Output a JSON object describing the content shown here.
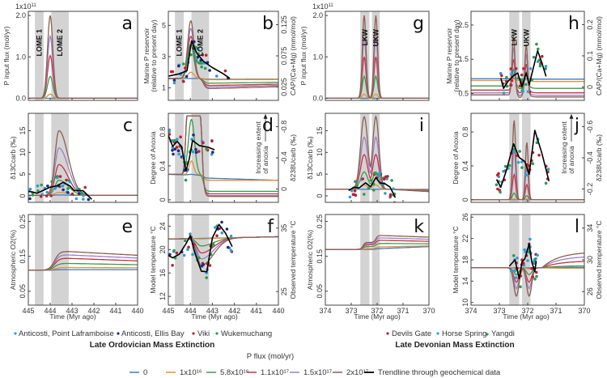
{
  "chart_data": {
    "type": "line",
    "title": "Model P-flux scenarios vs geochemical data for Late Ordovician and Late Devonian mass extinctions",
    "colors": {
      "flux_0": "#3b7bbf",
      "flux_1e16": "#e2913b",
      "flux_5.8e16": "#3a9a4c",
      "flux_1.1e17": "#c6333f",
      "flux_1.5e17": "#9b7fc9",
      "flux_2e17": "#8c5f4e",
      "trend": "#000000",
      "band": "#d3d3d3",
      "site_point_laframboise": "#2a9fd6",
      "site_ellis_bay": "#1d2b82",
      "site_viki": "#c0202f",
      "site_wukemuchang": "#2b9a55",
      "site_devils_gate": "#c0202f",
      "site_horse_spring": "#2a9fd6",
      "site_yangdi": "#2b9a55"
    },
    "scenarios": [
      {
        "label": "0",
        "flux": 0
      },
      {
        "label": "1x10^16",
        "flux": 1e+16
      },
      {
        "label": "5.8x10^16",
        "flux": 5.8e+16
      },
      {
        "label": "1.1x10^17",
        "flux": 1.1e+17
      },
      {
        "label": "1.5x10^17",
        "flux": 1.5e+17
      },
      {
        "label": "2x10^17",
        "flux": 2e+17
      }
    ],
    "groups": [
      {
        "name": "Late Ordovician Mass Extinction",
        "xlim": [
          445,
          440
        ],
        "xticks": [
          445,
          444,
          443,
          442,
          441,
          440
        ],
        "xlabel": "Time (Myr ago)",
        "bands": [
          {
            "label": "LOME 1",
            "from": 444.7,
            "to": 444.3
          },
          {
            "label": "LOME 2",
            "from": 443.95,
            "to": 443.15
          }
        ],
        "sites": [
          "Anticosti, Point Laframboise",
          "Anticosti, Ellis Bay",
          "Viki",
          "Wukemuchang"
        ],
        "panels": {
          "a": {
            "ylabel": "P input flux (mol/yr)",
            "yscale_label": "1x10^11",
            "ylim": [
              -0.05,
              2.1
            ],
            "yticks": [
              "0.0",
              "1.0",
              "2.0"
            ],
            "ytick_values": [
              0,
              1,
              2
            ],
            "peaks_1e11": [
              0,
              0.1,
              0.53,
              1.03,
              1.5,
              2.0
            ],
            "pulses": [
              {
                "center": 444.0,
                "width": 0.12
              }
            ]
          },
          "b": {
            "ylabel": "Marine P reservoir (relative to present day)",
            "ylabel2": "CAP/(Ca+Mg) (mmol/mol)",
            "ylim": [
              0.2,
              5.9
            ],
            "yticks": [
              "1",
              "3",
              "5"
            ],
            "ytick_values": [
              1,
              3,
              5
            ],
            "y2ticks": [
              "0.025",
              "0.075",
              "0.125"
            ],
            "baseline": 1.6,
            "peaks": [
              1.6,
              2.0,
              3.8,
              4.3,
              4.8,
              5.3
            ],
            "post": [
              1.55,
              1.52,
              1.3,
              1.15,
              1.05,
              0.95
            ],
            "trend": [
              [
                445,
                1.75
              ],
              [
                444.5,
                1.9
              ],
              [
                444.15,
                2.1
              ],
              [
                443.95,
                4.0
              ],
              [
                443.7,
                3.2
              ],
              [
                443.4,
                2.7
              ],
              [
                443.0,
                2.3
              ],
              [
                442.5,
                1.9
              ],
              [
                442.2,
                1.6
              ]
            ]
          },
          "c": {
            "ylabel": "δ13Ccarb (‰)",
            "ylim": [
              -1.5,
              19
            ],
            "yticks": [
              "0",
              "5",
              "10",
              "15"
            ],
            "ytick_values": [
              0,
              5,
              10,
              15
            ],
            "peaks": [
              0.2,
              0.8,
              3.6,
              7.2,
              11,
              15
            ],
            "trend": [
              [
                445,
                1.1
              ],
              [
                444.6,
                0.6
              ],
              [
                444.3,
                1.3
              ],
              [
                444.0,
                2.0
              ],
              [
                443.7,
                2.3
              ],
              [
                443.4,
                3.1
              ],
              [
                443.1,
                2.3
              ],
              [
                442.9,
                1.2
              ],
              [
                442.5,
                1.2
              ],
              [
                442.1,
                -0.8
              ]
            ]
          },
          "d": {
            "ylabel": "Degree of Anoxia",
            "ylabel2": "δ238Ucarb (‰)",
            "annotation": "Increasing extent of anoxia",
            "ylim": [
              -0.03,
              1.02
            ],
            "yticks": [
              "0",
              "0.4",
              "0.8"
            ],
            "ytick_values": [
              0,
              0.4,
              0.8
            ],
            "y2ticks": [
              "0",
              "-0.4",
              "-0.8"
            ],
            "baseline": 0.3,
            "peaks": [
              0.3,
              0.46,
              0.95,
              0.99,
              0.99,
              0.99
            ],
            "post": [
              0.27,
              0.23,
              0.1,
              0.07,
              0.05,
              0.04
            ],
            "trend": [
              [
                445,
                0.76
              ],
              [
                444.8,
                0.63
              ],
              [
                444.6,
                0.69
              ],
              [
                444.4,
                0.63
              ],
              [
                444.2,
                0.34
              ],
              [
                444.05,
                0.48
              ],
              [
                443.9,
                0.7
              ],
              [
                443.6,
                0.64
              ],
              [
                443.2,
                0.62
              ],
              [
                442.9,
                0.59
              ]
            ]
          },
          "e": {
            "ylabel": "Atmospheric O2(%)",
            "ylim": [
              0.01,
              0.27
            ],
            "yticks": [
              "0.05",
              "0.15",
              "0.25"
            ],
            "ytick_values": [
              0.05,
              0.15,
              0.25
            ],
            "baseline": 0.11,
            "plateau": [
              0.112,
              0.118,
              0.13,
              0.145,
              0.155,
              0.165
            ],
            "end": [
              0.112,
              0.117,
              0.126,
              0.137,
              0.145,
              0.153
            ]
          },
          "f": {
            "ylabel": "Model temperature °C",
            "ylabel2": "Observed temperature °C",
            "ylim": [
              10.5,
              26
            ],
            "yticks": [
              "12",
              "16",
              "20",
              "24"
            ],
            "ytick_values": [
              12,
              16,
              20,
              24
            ],
            "y2ticks": [
              "25",
              "35"
            ],
            "baseline": 21.8,
            "troughs": [
              21.8,
              21.7,
              20.5,
              19.3,
              18.3,
              17.2
            ],
            "trend": [
              [
                445,
                19.0
              ],
              [
                444.8,
                18.6
              ],
              [
                444.5,
                19.2
              ],
              [
                444.2,
                21.0
              ],
              [
                444.0,
                22.4
              ],
              [
                443.8,
                19.5
              ],
              [
                443.5,
                16.3
              ],
              [
                443.25,
                16.2
              ],
              [
                443.0,
                22.0
              ],
              [
                442.7,
                24.3
              ],
              [
                442.4,
                22.8
              ],
              [
                442.1,
                20.5
              ]
            ]
          }
        }
      },
      {
        "name": "Late Devonian Mass Extinction",
        "xlim": [
          374,
          370
        ],
        "xticks": [
          374,
          373,
          372,
          371,
          370
        ],
        "xlabel": "Time (Myr ago)",
        "bands": [
          {
            "label": "LKW",
            "from": 372.65,
            "to": 372.3
          },
          {
            "label": "UKW",
            "from": 372.2,
            "to": 371.9
          }
        ],
        "sites": [
          "Devils Gate",
          "Horse Spring",
          "Yangdi"
        ],
        "panels": {
          "g": {
            "ylabel": "P input flux (mol/yr)",
            "yscale_label": "1x10^11",
            "ylim": [
              -0.05,
              2.1
            ],
            "yticks": [
              "0.0",
              "1.0",
              "2.0"
            ],
            "ytick_values": [
              0,
              1,
              2
            ],
            "peaks_1e11": [
              0,
              0.1,
              0.53,
              1.0,
              1.5,
              2.0
            ],
            "pulses": [
              {
                "center": 372.5,
                "width": 0.07
              },
              {
                "center": 372.05,
                "width": 0.07
              }
            ]
          },
          "h": {
            "ylabel": "Marine P reservoir (relative to present day)",
            "ylabel2": "CAP/(Ca+Mg) (mmol/mol)",
            "ylim": [
              0.3,
              2.9
            ],
            "yticks": [
              "0.5",
              "1.5",
              "2.5"
            ],
            "ytick_values": [
              0.5,
              1.5,
              2.5
            ],
            "y2ticks": [
              "0",
              "0.1",
              "0.2"
            ],
            "baselines": [
              0.93,
              0.88,
              0.72,
              0.6,
              0.52,
              0.46
            ],
            "peaks": [
              0.93,
              0.95,
              1.2,
              1.5,
              1.85,
              2.2
            ],
            "post": [
              0.92,
              0.85,
              0.65,
              0.52,
              0.45,
              0.4
            ],
            "trend": [
              [
                372.95,
                0.95
              ],
              [
                372.85,
                0.65
              ],
              [
                372.7,
                0.85
              ],
              [
                372.5,
                1.02
              ],
              [
                372.35,
                1.1
              ],
              [
                372.2,
                0.7
              ],
              [
                372.05,
                1.1
              ],
              [
                371.95,
                0.75
              ],
              [
                371.8,
                1.25
              ],
              [
                371.65,
                1.75
              ],
              [
                371.5,
                1.4
              ],
              [
                371.35,
                1.0
              ]
            ]
          },
          "i": {
            "ylabel": "δ13Ccarb (‰)",
            "ylim": [
              -1.5,
              19
            ],
            "yticks": [
              "0",
              "5",
              "10",
              "15"
            ],
            "ytick_values": [
              0,
              5,
              10,
              15
            ],
            "baseline": 1.5,
            "peaks": [
              1.5,
              2.5,
              5.5,
              9.5,
              13.5,
              18.2
            ],
            "trend": [
              [
                373.1,
                1.2
              ],
              [
                372.9,
                2.0
              ],
              [
                372.7,
                1.8
              ],
              [
                372.45,
                3.0
              ],
              [
                372.25,
                2.1
              ],
              [
                372.05,
                4.2
              ],
              [
                371.9,
                3.0
              ],
              [
                371.7,
                2.8
              ],
              [
                371.5,
                2.0
              ],
              [
                371.3,
                -0.4
              ]
            ]
          },
          "j": {
            "ylabel": "Degree of Anoxia",
            "ylabel2": "δ238Ucarb (‰)",
            "annotation": "Increasing extent of anoxia",
            "ylim": [
              -0.03,
              1.02
            ],
            "yticks": [
              "0",
              "0.4",
              "0.8"
            ],
            "ytick_values": [
              0,
              0.4,
              0.8
            ],
            "y2ticks": [
              "-0.2",
              "-0.4",
              "-0.6"
            ],
            "peaks": [
              0,
              0.01,
              0.08,
              0.3,
              0.6,
              0.94
            ],
            "peaks2": [
              0,
              0.01,
              0.05,
              0.18,
              0.4,
              0.68
            ],
            "trend": [
              [
                373.1,
                0.24
              ],
              [
                372.95,
                0.15
              ],
              [
                372.75,
                0.35
              ],
              [
                372.5,
                0.66
              ],
              [
                372.3,
                0.5
              ],
              [
                372.1,
                0.45
              ],
              [
                371.95,
                0.3
              ],
              [
                371.75,
                0.82
              ],
              [
                371.5,
                0.55
              ],
              [
                371.25,
                0.22
              ]
            ]
          },
          "k": {
            "ylabel": "Atmospheric O2(%)",
            "ylim": [
              0.01,
              0.27
            ],
            "yticks": [
              "0.05",
              "0.15",
              "0.25"
            ],
            "ytick_values": [
              0.05,
              0.15,
              0.25
            ],
            "baseline": 0.17,
            "step1": [
              0.17,
              0.172,
              0.178,
              0.183,
              0.187,
              0.19
            ],
            "step2": [
              0.172,
              0.177,
              0.187,
              0.196,
              0.203,
              0.21
            ],
            "end": [
              0.178,
              0.18,
              0.186,
              0.193,
              0.199,
              0.205
            ]
          },
          "l": {
            "ylabel": "Model temperature °C",
            "ylabel2": "Observed temperature °C",
            "ylim": [
              9.5,
              26.5
            ],
            "yticks": [
              "10",
              "14",
              "18",
              "22",
              "26"
            ],
            "ytick_values": [
              10,
              14,
              18,
              22,
              26
            ],
            "y2ticks": [
              "26",
              "30",
              "34"
            ],
            "baseline": 16.5,
            "troughs": [
              16.5,
              16.3,
              15.2,
              13.8,
              12.6,
              11.2
            ],
            "end": [
              16.6,
              16.4,
              16.9,
              17.8,
              18.7,
              19.5
            ],
            "trend": [
              [
                372.65,
                16.8
              ],
              [
                372.45,
                18.0
              ],
              [
                372.3,
                14.5
              ],
              [
                372.2,
                17.6
              ],
              [
                372.1,
                18.2
              ],
              [
                371.95,
                21.0
              ],
              [
                371.85,
                17.5
              ],
              [
                371.75,
                15.8
              ],
              [
                371.7,
                17.8
              ]
            ]
          }
        }
      }
    ],
    "legend": {
      "title": "P flux (mol/yr)",
      "entries": [
        "0",
        "1x10¹⁶",
        "5.8x10¹⁶",
        "1.1x10¹⁷",
        "1.5x10¹⁷",
        "2x10¹⁷"
      ],
      "trend_label": "Trendline through geochemical data"
    }
  },
  "text": {
    "lome_title": "Late Ordovician Mass Extinction",
    "ldme_title": "Late Devonian Mass Extinction",
    "x_label": "Time (Myr ago)",
    "scale_1e11": "1x10",
    "scale_exp": "11",
    "sites_lome": [
      "Anticosti, Point Laframboise",
      "Anticosti, Ellis Bay",
      "Viki",
      "Wukemuchang"
    ],
    "sites_ldme": [
      "Devils Gate",
      "Horse Spring",
      "Yangdi"
    ],
    "panel_letters": [
      "a",
      "b",
      "c",
      "d",
      "e",
      "f",
      "g",
      "h",
      "i",
      "j",
      "k",
      "l"
    ],
    "annot_line1": "Increasing extent",
    "annot_line2": "of anoxia"
  }
}
